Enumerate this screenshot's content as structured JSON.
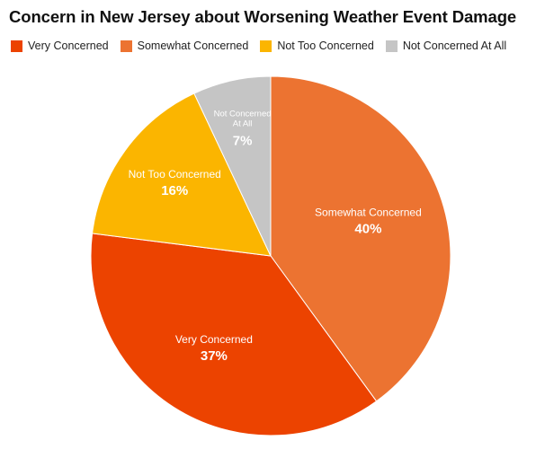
{
  "chart_data": {
    "type": "pie",
    "title": "Concern in New Jersey about Worsening Weather Event Damage",
    "slices": [
      {
        "label": "Very Concerned",
        "value": 37,
        "value_label": "37%",
        "color": "#ec4300",
        "label_lines": [
          "Very Concerned"
        ]
      },
      {
        "label": "Somewhat Concerned",
        "value": 40,
        "value_label": "40%",
        "color": "#ec7331",
        "label_lines": [
          "Somewhat Concerned"
        ]
      },
      {
        "label": "Not Too Concerned",
        "value": 16,
        "value_label": "16%",
        "color": "#fbb500",
        "label_lines": [
          "Not Too Concerned"
        ]
      },
      {
        "label": "Not Concerned At All",
        "value": 7,
        "value_label": "7%",
        "color": "#c5c5c5",
        "label_lines": [
          "Not Concerned",
          "At All"
        ]
      }
    ],
    "legend_position": "top-left",
    "direction": "clockwise from top: Somewhat Concerned, Very Concerned, Not Too Concerned, Not Concerned At All"
  }
}
